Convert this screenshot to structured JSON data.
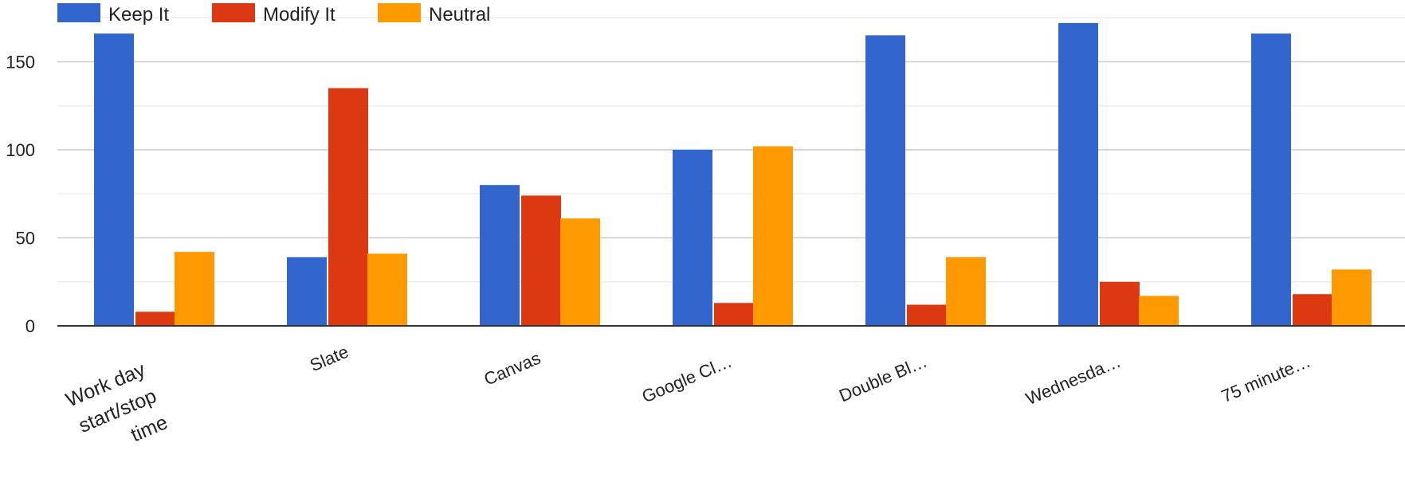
{
  "chart_data": {
    "type": "bar",
    "title": "",
    "xlabel": "",
    "ylabel": "",
    "ylim": [
      0,
      175
    ],
    "yticks": [
      0,
      50,
      100,
      150
    ],
    "grid": true,
    "legend_position": "top-left",
    "categories": [
      [
        "Work day",
        "start/stop",
        "time"
      ],
      [
        "Slate"
      ],
      [
        "Canvas"
      ],
      [
        "Google Cl…"
      ],
      [
        "Double Bl…"
      ],
      [
        "Wednesda…"
      ],
      [
        "75 minute…"
      ]
    ],
    "series": [
      {
        "name": "Keep It",
        "color": "#3366cc",
        "values": [
          166,
          39,
          80,
          100,
          165,
          172,
          166
        ]
      },
      {
        "name": "Modify It",
        "color": "#dc3912",
        "values": [
          8,
          135,
          74,
          13,
          12,
          25,
          18
        ]
      },
      {
        "name": "Neutral",
        "color": "#ff9900",
        "values": [
          42,
          41,
          61,
          102,
          39,
          17,
          32
        ]
      }
    ]
  }
}
